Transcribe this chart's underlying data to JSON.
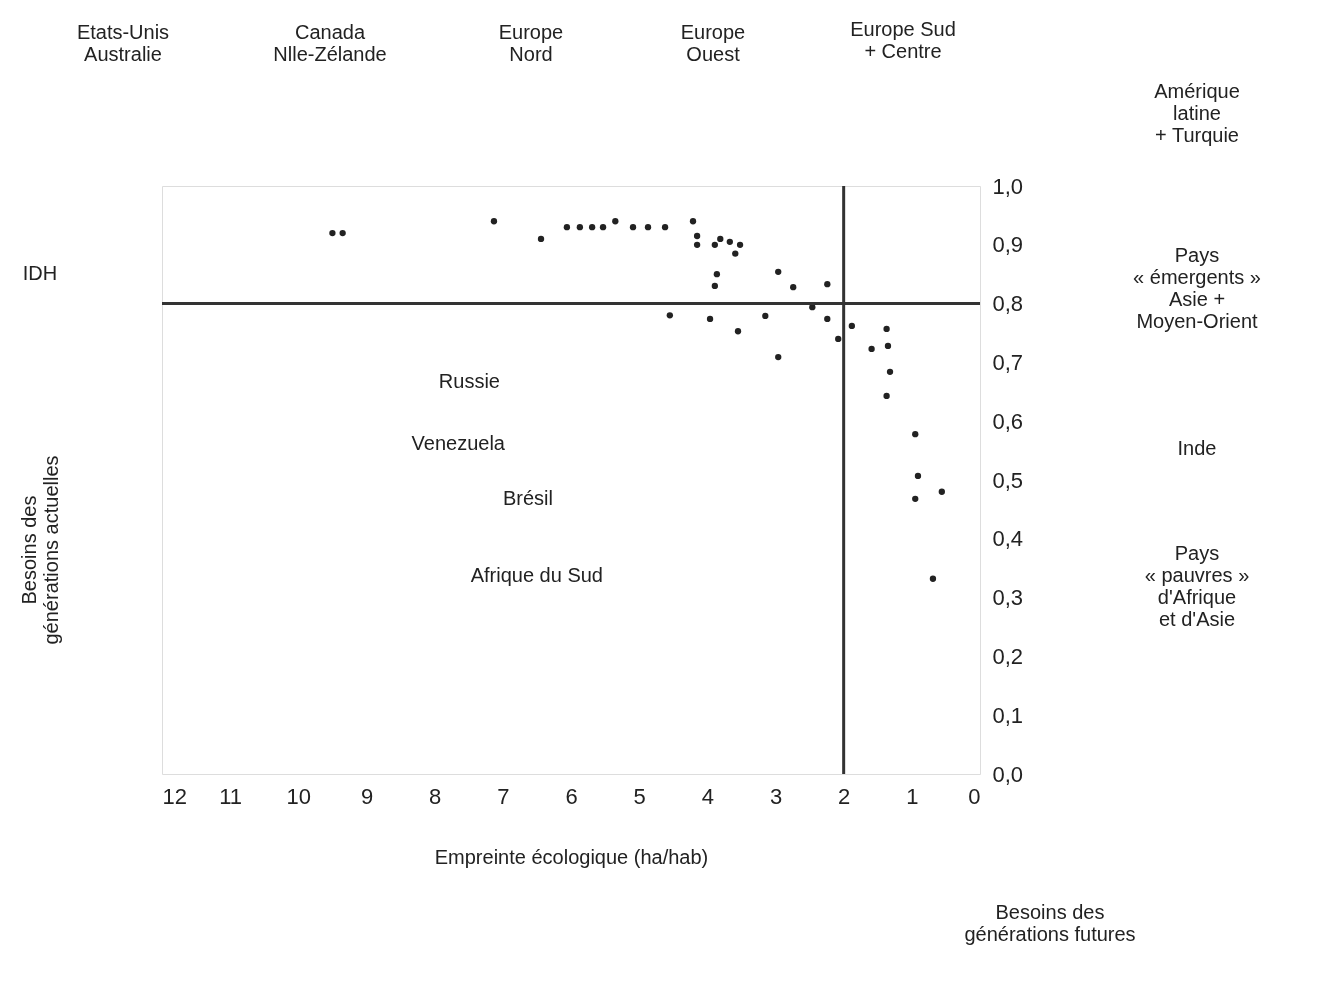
{
  "chart_data": {
    "type": "scatter",
    "xlabel": "Empreinte écologique (ha/hab)",
    "x": [
      9.5,
      9.35,
      7.13,
      6.44,
      6.06,
      5.87,
      5.69,
      5.53,
      5.35,
      5.09,
      4.87,
      4.62,
      4.21,
      4.15,
      4.15,
      3.89,
      3.86,
      3.81,
      3.67,
      3.52,
      3.59,
      3.89,
      2.96,
      2.74,
      2.24,
      2.46,
      2.24,
      1.88,
      2.08,
      3.15,
      4.55,
      3.96,
      3.55,
      2.96,
      1.59,
      1.37,
      1.35,
      1.32,
      1.37,
      0.95,
      0.91,
      0.95,
      0.56,
      0.69
    ],
    "values": [
      0.92,
      0.92,
      0.94,
      0.91,
      0.93,
      0.93,
      0.93,
      0.93,
      0.94,
      0.93,
      0.93,
      0.93,
      0.94,
      0.915,
      0.9,
      0.9,
      0.85,
      0.91,
      0.905,
      0.9,
      0.885,
      0.83,
      0.854,
      0.828,
      0.833,
      0.794,
      0.774,
      0.762,
      0.74,
      0.779,
      0.78,
      0.774,
      0.753,
      0.709,
      0.723,
      0.757,
      0.728,
      0.684,
      0.643,
      0.578,
      0.507,
      0.468,
      0.48,
      0.332
    ],
    "color": "#222222",
    "marker": "circle",
    "grid": false,
    "xlim": [
      12,
      0
    ],
    "xticks": [
      12,
      11,
      10,
      9,
      8,
      7,
      6,
      5,
      4,
      3,
      2,
      1,
      0
    ],
    "ylim": [
      0,
      1
    ],
    "yticks": [
      {
        "value": 0,
        "label": "0,0"
      },
      {
        "value": 0.1,
        "label": "0,1"
      },
      {
        "value": 0.2,
        "label": "0,2"
      },
      {
        "value": 0.3,
        "label": "0,3"
      },
      {
        "value": 0.4,
        "label": "0,4"
      },
      {
        "value": 0.5,
        "label": "0,5"
      },
      {
        "value": 0.6,
        "label": "0,6"
      },
      {
        "value": 0.7,
        "label": "0,7"
      },
      {
        "value": 0.8,
        "label": "0,8"
      },
      {
        "value": 0.9,
        "label": "0,9"
      },
      {
        "value": 1,
        "label": "1,0"
      }
    ],
    "ref_lines": [
      {
        "axis": "y",
        "value": 0.8,
        "color": "#333333"
      },
      {
        "axis": "x",
        "value": 2,
        "color": "#333333"
      }
    ],
    "annotations": [
      "Etats-Unis\nAustralie",
      "Canada\nNlle-Zélande",
      "Europe\nNord",
      "Europe\nOuest",
      "Europe Sud\n+ Centre",
      "Amérique\nlatine\n+ Turquie",
      "Pays\n« émergents »\nAsie +\nMoyen-Orient",
      "Inde",
      "Pays\n« pauvres »\nd'Afrique\net d'Asie",
      "Russie",
      "Venezuela",
      "Brésil",
      "Afrique du Sud",
      "Besoins des\ngénérations actuelles",
      "Besoins des\ngénérations futures",
      "IDH"
    ]
  }
}
